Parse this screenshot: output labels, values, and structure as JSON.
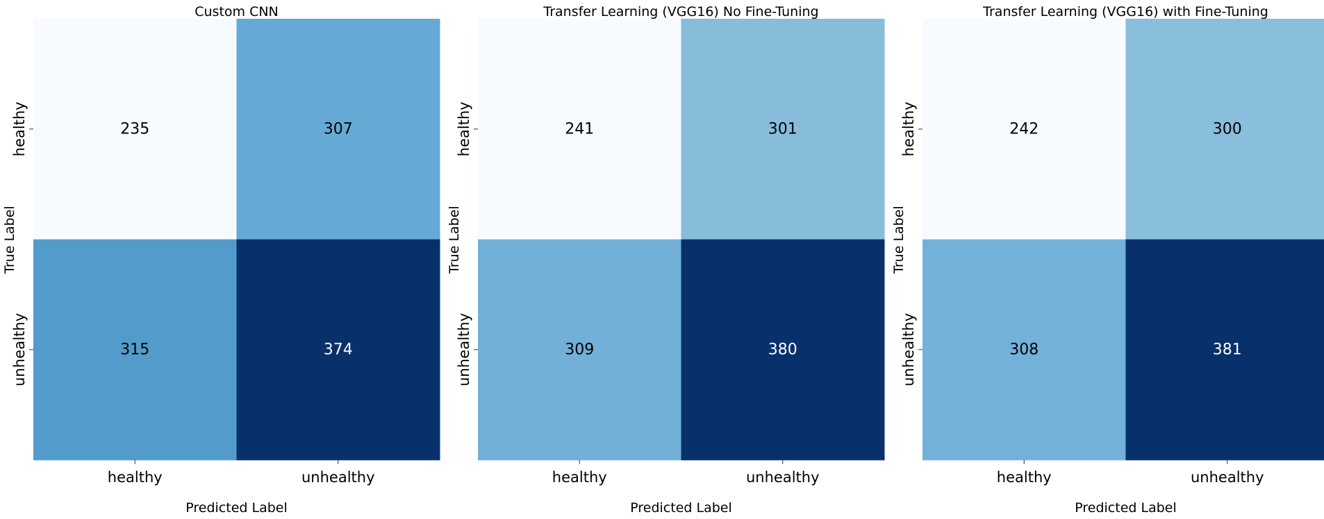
{
  "chart_data": [
    {
      "type": "heatmap",
      "title": "Custom CNN",
      "xlabel": "Predicted Label",
      "ylabel": "True Label",
      "x_categories": [
        "healthy",
        "unhealthy"
      ],
      "y_categories": [
        "healthy",
        "unhealthy"
      ],
      "values": [
        [
          235,
          307
        ],
        [
          315,
          374
        ]
      ],
      "colormap": "Blues",
      "colors": [
        [
          "#f7fbff",
          "#65aad4"
        ],
        [
          "#539bcb",
          "#08306b"
        ]
      ]
    },
    {
      "type": "heatmap",
      "title": "Transfer Learning (VGG16) No Fine-Tuning",
      "xlabel": "Predicted Label",
      "ylabel": "True Label",
      "x_categories": [
        "healthy",
        "unhealthy"
      ],
      "y_categories": [
        "healthy",
        "unhealthy"
      ],
      "values": [
        [
          241,
          301
        ],
        [
          309,
          380
        ]
      ],
      "colormap": "Blues",
      "colors": [
        [
          "#f7fbff",
          "#87bcdb"
        ],
        [
          "#72b0d7",
          "#08306b"
        ]
      ]
    },
    {
      "type": "heatmap",
      "title": "Transfer Learning (VGG16) with Fine-Tuning",
      "xlabel": "Predicted Label",
      "ylabel": "True Label",
      "x_categories": [
        "healthy",
        "unhealthy"
      ],
      "y_categories": [
        "healthy",
        "unhealthy"
      ],
      "values": [
        [
          242,
          300
        ],
        [
          308,
          381
        ]
      ],
      "colormap": "Blues",
      "colors": [
        [
          "#f7fbff",
          "#89bedc"
        ],
        [
          "#73b2d8",
          "#08306b"
        ]
      ]
    }
  ]
}
